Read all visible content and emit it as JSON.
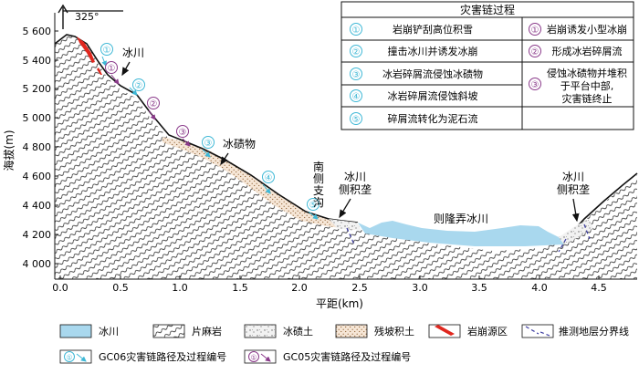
{
  "compass": "325°",
  "y_axis": {
    "title": "海拔(m)",
    "ticks": [
      "5 600",
      "5 400",
      "5 200",
      "5 000",
      "4 800",
      "4 600",
      "4 400",
      "4 200",
      "4 000"
    ]
  },
  "x_axis": {
    "title": "平距(km)",
    "ticks": [
      "0.0",
      "0.5",
      "1.0",
      "1.5",
      "2.0",
      "2.5",
      "3.0",
      "3.5",
      "4.0",
      "4.5"
    ]
  },
  "labels": {
    "glacier_small": "冰川",
    "moraine": "冰碛物",
    "south_branch": [
      "南",
      "侧",
      "支",
      "沟"
    ],
    "lateral_left": [
      "冰川",
      "侧积垄"
    ],
    "main_glacier": "则隆弄冰川",
    "lateral_right": [
      "冰川",
      "侧积垄"
    ]
  },
  "path_markers": [
    {
      "num": "①",
      "route": "GC06"
    },
    {
      "num": "①",
      "route": "GC05"
    },
    {
      "num": "②",
      "route": "GC06"
    },
    {
      "num": "②",
      "route": "GC05"
    },
    {
      "num": "③",
      "route": "GC05"
    },
    {
      "num": "③",
      "route": "GC06"
    },
    {
      "num": "④",
      "route": "GC06"
    },
    {
      "num": "⑤",
      "route": "GC06"
    }
  ],
  "process_table": {
    "title": "灾害链过程",
    "rows": [
      {
        "num": "①",
        "text": "岩崩铲刮高位积雪",
        "num2": "①",
        "text2": "岩崩诱发小型冰崩"
      },
      {
        "num": "②",
        "text": "撞击冰川并诱发冰崩",
        "num2": "②",
        "text2": "形成冰岩碎屑流"
      },
      {
        "num": "③",
        "text": "冰岩碎屑流侵蚀冰碛物",
        "num2": "③",
        "text2": "侵蚀冰碛物并堆积于平台中部，灾害链终止"
      },
      {
        "num": "④",
        "text": "冰岩碎屑流侵蚀斜坡"
      },
      {
        "num": "⑤",
        "text": "碎屑流转化为泥石流"
      }
    ],
    "text2_lines": [
      "侵蚀冰碛物并堆积",
      "于平台中部,",
      "灾害链终止"
    ]
  },
  "legend": {
    "glacier": "冰川",
    "gneiss": "片麻岩",
    "moraine": "冰碛土",
    "residual": "残坡积土",
    "source": "岩崩源区",
    "boundary": "推测地层分界线",
    "gc06": "GC06灾害链路径及过程编号",
    "gc05": "GC05灾害链路径及过程编号"
  },
  "colors": {
    "gc06": "#3fb8d6",
    "gc05": "#8a3a8a",
    "glacier": "#a9d8ee",
    "source": "#e0281f",
    "boundary": "#3a3aa0"
  }
}
